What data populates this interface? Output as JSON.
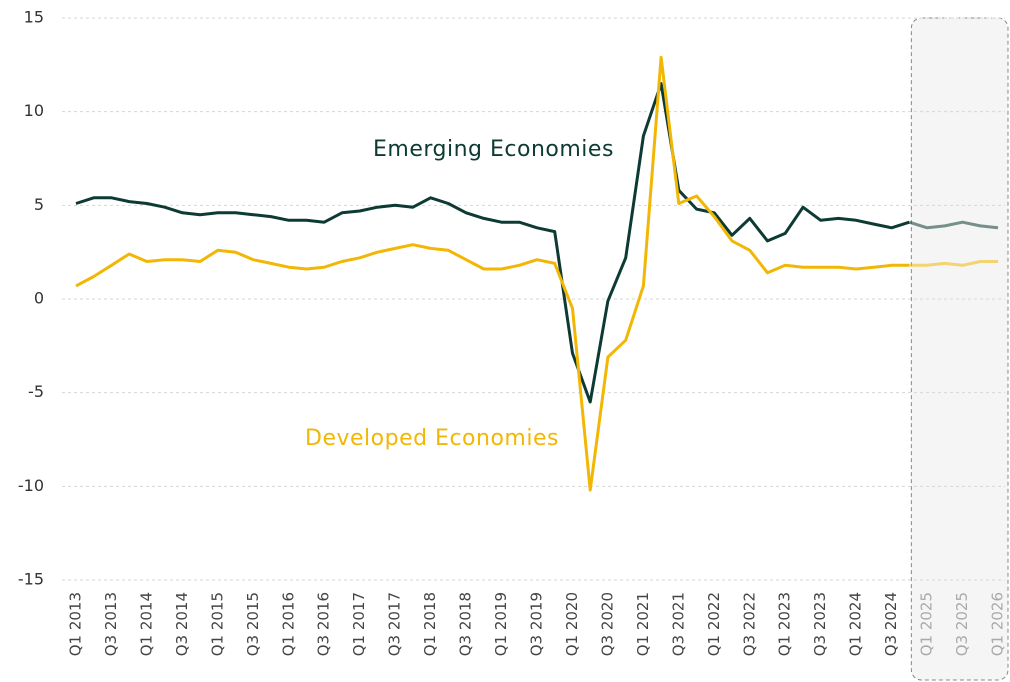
{
  "chart_data": {
    "type": "line",
    "categories": [
      "Q1 2013",
      null,
      "Q3 2013",
      null,
      "Q1 2014",
      null,
      "Q3 2014",
      null,
      "Q1 2015",
      null,
      "Q3 2015",
      null,
      "Q1 2016",
      null,
      "Q3 2016",
      null,
      "Q1 2017",
      null,
      "Q3 2017",
      null,
      "Q1 2018",
      null,
      "Q3 2018",
      null,
      "Q1 2019",
      null,
      "Q3 2019",
      null,
      "Q1 2020",
      null,
      "Q3 2020",
      null,
      "Q1 2021",
      null,
      "Q3 2021",
      null,
      "Q1 2022",
      null,
      "Q3 2022",
      null,
      "Q1 2023",
      null,
      "Q3 2023",
      null,
      "Q1 2024",
      null,
      "Q3 2024",
      null,
      "Q1 2025",
      null,
      "Q3 2025",
      null,
      "Q1 2026"
    ],
    "series": [
      {
        "name": "Emerging Economies",
        "color": "#0d3b33",
        "values": [
          5.1,
          5.4,
          5.4,
          5.2,
          5.1,
          4.9,
          4.6,
          4.5,
          4.6,
          4.6,
          4.5,
          4.4,
          4.2,
          4.2,
          4.1,
          4.6,
          4.7,
          4.9,
          5.0,
          4.9,
          5.4,
          5.1,
          4.6,
          4.3,
          4.1,
          4.1,
          3.8,
          3.6,
          -2.9,
          -5.5,
          -0.1,
          2.2,
          8.7,
          11.5,
          5.8,
          4.8,
          4.6,
          3.4,
          4.3,
          3.1,
          3.5,
          4.9,
          4.2,
          4.3,
          4.2,
          4.0,
          3.8,
          4.1,
          3.8,
          3.9,
          4.1,
          3.9,
          3.8
        ]
      },
      {
        "name": "Developed Economies",
        "color": "#f2b705",
        "values": [
          0.7,
          1.2,
          1.8,
          2.4,
          2.0,
          2.1,
          2.1,
          2.0,
          2.6,
          2.5,
          2.1,
          1.9,
          1.7,
          1.6,
          1.7,
          2.0,
          2.2,
          2.5,
          2.7,
          2.9,
          2.7,
          2.6,
          2.1,
          1.6,
          1.6,
          1.8,
          2.1,
          1.9,
          -0.5,
          -10.2,
          -3.1,
          -2.2,
          0.7,
          12.9,
          5.1,
          5.5,
          4.4,
          3.1,
          2.6,
          1.4,
          1.8,
          1.7,
          1.7,
          1.7,
          1.6,
          1.7,
          1.8,
          1.8,
          1.8,
          1.9,
          1.8,
          2.0,
          2.0
        ]
      }
    ],
    "forecast_from": "Q1 2025",
    "ylim": [
      -15,
      15
    ],
    "yticks": [
      -15,
      -10,
      -5,
      0,
      5,
      10,
      15
    ],
    "grid": true
  }
}
